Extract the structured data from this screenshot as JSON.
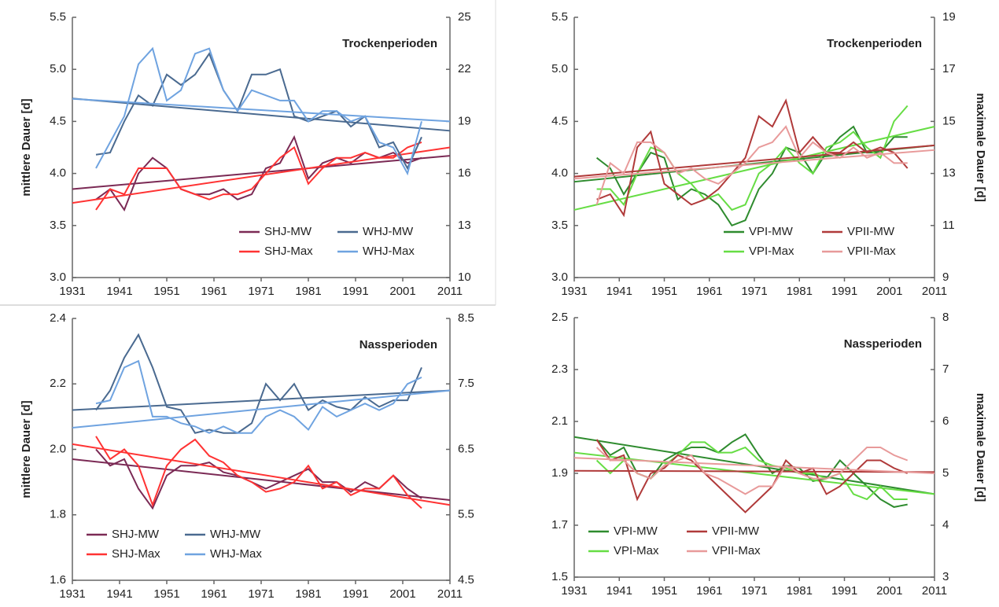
{
  "chart_data": [
    {
      "type": "line",
      "annotation": "Trockenperioden",
      "ylabel": "mittlere Dauer [d]",
      "xlim": [
        1931,
        2011
      ],
      "xticks": [
        1931,
        1941,
        1951,
        1961,
        1971,
        1981,
        1991,
        2001,
        2011
      ],
      "ylim": [
        3.0,
        5.5
      ],
      "yticks": [
        {
          "value": 3.0,
          "label": "3.0"
        },
        3.5,
        {
          "value": 4.0,
          "label": "4.0"
        },
        4.5,
        {
          "value": 5.0,
          "label": "5.0"
        },
        5.5
      ],
      "y2lim": [
        10,
        25
      ],
      "y2ticks": [
        10,
        13,
        16,
        19,
        22,
        25
      ],
      "legend": "lower right",
      "trend_x": [
        1931,
        2011
      ],
      "x": [
        1936,
        1939,
        1942,
        1945,
        1948,
        1951,
        1954,
        1957,
        1960,
        1963,
        1966,
        1969,
        1972,
        1975,
        1978,
        1981,
        1984,
        1987,
        1990,
        1993,
        1996,
        1999,
        2002,
        2005
      ],
      "series": [
        {
          "name": "SHJ-MW",
          "color": "#7b2a55",
          "trend": [
            3.85,
            4.17
          ],
          "values": [
            3.75,
            3.85,
            3.65,
            4.0,
            4.15,
            4.05,
            3.85,
            3.8,
            3.8,
            3.85,
            3.75,
            3.8,
            4.05,
            4.1,
            4.35,
            3.95,
            4.1,
            4.15,
            4.1,
            4.2,
            4.15,
            4.2,
            4.1,
            4.15
          ]
        },
        {
          "name": "SHJ-Max",
          "color": "#ff3333",
          "axis": "y2",
          "trend": [
            14.3,
            17.5
          ],
          "values": [
            13.9,
            15.1,
            14.8,
            16.3,
            16.3,
            16.3,
            15.1,
            14.8,
            14.5,
            14.8,
            14.8,
            15.1,
            16.0,
            16.9,
            17.5,
            15.4,
            16.3,
            16.9,
            16.9,
            17.2,
            16.9,
            16.9,
            17.5,
            17.8
          ]
        },
        {
          "name": "WHJ-MW",
          "color": "#4a6a90",
          "trend": [
            4.72,
            4.41
          ],
          "values": [
            4.18,
            4.2,
            4.5,
            4.75,
            4.65,
            4.95,
            4.85,
            4.95,
            5.15,
            4.8,
            4.6,
            4.95,
            4.95,
            5.0,
            4.55,
            4.5,
            4.55,
            4.6,
            4.45,
            4.55,
            4.25,
            4.3,
            4.05,
            4.35
          ]
        },
        {
          "name": "WHJ-Max",
          "color": "#6fa3e0",
          "axis": "y2",
          "trend": [
            20.3,
            19.0
          ],
          "values": [
            16.3,
            17.8,
            19.3,
            22.3,
            23.2,
            20.2,
            20.8,
            22.9,
            23.2,
            20.8,
            19.6,
            20.8,
            20.5,
            20.2,
            20.2,
            19.0,
            19.6,
            19.6,
            19.0,
            19.3,
            17.8,
            17.5,
            16.0,
            19.0
          ]
        }
      ]
    },
    {
      "type": "line",
      "annotation": "Trockenperioden",
      "y2label": "maximale Dauer [d]",
      "xlim": [
        1931,
        2011
      ],
      "xticks": [
        1931,
        1941,
        1951,
        1961,
        1971,
        1981,
        1991,
        2001,
        2011
      ],
      "ylim": [
        3.0,
        5.5
      ],
      "yticks": [
        {
          "value": 3.0,
          "label": "3.0"
        },
        3.5,
        {
          "value": 4.0,
          "label": "4.0"
        },
        4.5,
        {
          "value": 5.0,
          "label": "5.0"
        },
        5.5
      ],
      "y2lim": [
        9,
        19
      ],
      "y2ticks": [
        9,
        11,
        13,
        15,
        17,
        19
      ],
      "legend": "lower right",
      "trend_x": [
        1931,
        2011
      ],
      "x": [
        1936,
        1939,
        1942,
        1945,
        1948,
        1951,
        1954,
        1957,
        1960,
        1963,
        1966,
        1969,
        1972,
        1975,
        1978,
        1981,
        1984,
        1987,
        1990,
        1993,
        1996,
        1999,
        2002,
        2005
      ],
      "series": [
        {
          "name": "VPI-MW",
          "color": "#2e8b2e",
          "trend": [
            3.92,
            4.27
          ],
          "values": [
            4.15,
            4.05,
            3.8,
            4.0,
            4.2,
            4.15,
            3.75,
            3.85,
            3.8,
            3.7,
            3.5,
            3.55,
            3.85,
            4.0,
            4.25,
            4.2,
            4.0,
            4.2,
            4.35,
            4.45,
            4.2,
            4.2,
            4.35,
            4.35
          ]
        },
        {
          "name": "VPI-Max",
          "color": "#66dd44",
          "axis": "y2",
          "trend": [
            11.6,
            14.8
          ],
          "values": [
            12.4,
            12.4,
            11.8,
            13.0,
            14.0,
            13.8,
            13.0,
            12.6,
            12.0,
            12.2,
            11.6,
            11.8,
            13.0,
            13.4,
            14.0,
            13.4,
            13.0,
            14.0,
            14.2,
            14.6,
            14.0,
            13.6,
            15.0,
            15.6
          ]
        },
        {
          "name": "VPII-MW",
          "color": "#b03a3a",
          "trend": [
            3.97,
            4.27
          ],
          "values": [
            3.75,
            3.8,
            3.6,
            4.25,
            4.4,
            3.9,
            3.8,
            3.7,
            3.75,
            3.85,
            4.0,
            4.15,
            4.55,
            4.45,
            4.7,
            4.2,
            4.35,
            4.2,
            4.2,
            4.3,
            4.2,
            4.25,
            4.2,
            4.05
          ]
        },
        {
          "name": "VPII-Max",
          "color": "#e89a9a",
          "axis": "y2",
          "trend": [
            12.8,
            13.9
          ],
          "values": [
            11.8,
            13.4,
            13.0,
            14.2,
            14.2,
            13.8,
            13.0,
            13.2,
            12.8,
            12.6,
            13.0,
            13.4,
            14.0,
            14.2,
            14.8,
            13.6,
            14.2,
            13.8,
            13.6,
            14.0,
            13.6,
            13.8,
            13.4,
            13.4
          ]
        }
      ]
    },
    {
      "type": "line",
      "annotation": "Nassperioden",
      "ylabel": "mittlere Dauer [d]",
      "xlim": [
        1931,
        2011
      ],
      "xticks": [
        1931,
        1941,
        1951,
        1961,
        1971,
        1981,
        1991,
        2001,
        2011
      ],
      "ylim": [
        1.6,
        2.4
      ],
      "yticks": [
        1.6,
        1.8,
        {
          "value": 2.0,
          "label": "2.0"
        },
        2.2,
        2.4
      ],
      "y2lim": [
        4.5,
        8.5
      ],
      "y2ticks": [
        4.5,
        5.5,
        6.5,
        7.5,
        8.5
      ],
      "legend": "lower left",
      "trend_x": [
        1931,
        2011
      ],
      "x": [
        1936,
        1939,
        1942,
        1945,
        1948,
        1951,
        1954,
        1957,
        1960,
        1963,
        1966,
        1969,
        1972,
        1975,
        1978,
        1981,
        1984,
        1987,
        1990,
        1993,
        1996,
        1999,
        2002,
        2005
      ],
      "series": [
        {
          "name": "SHJ-MW",
          "color": "#7b2a55",
          "trend": [
            1.97,
            1.845
          ],
          "values": [
            2.0,
            1.95,
            1.97,
            1.88,
            1.82,
            1.92,
            1.95,
            1.95,
            1.96,
            1.93,
            1.92,
            1.9,
            1.88,
            1.9,
            1.92,
            1.94,
            1.9,
            1.9,
            1.87,
            1.9,
            1.88,
            1.92,
            1.88,
            1.85
          ]
        },
        {
          "name": "SHJ-Max",
          "color": "#ff3333",
          "axis": "y2",
          "trend": [
            6.58,
            5.65
          ],
          "values": [
            6.7,
            6.35,
            6.5,
            6.25,
            5.65,
            6.25,
            6.5,
            6.65,
            6.4,
            6.3,
            6.1,
            6.0,
            5.85,
            5.9,
            6.0,
            6.25,
            5.9,
            6.0,
            5.8,
            5.9,
            5.9,
            6.1,
            5.8,
            5.6
          ]
        },
        {
          "name": "WHJ-MW",
          "color": "#4a6a90",
          "trend": [
            2.12,
            2.18
          ],
          "values": [
            2.12,
            2.18,
            2.28,
            2.35,
            2.25,
            2.13,
            2.12,
            2.05,
            2.06,
            2.05,
            2.05,
            2.08,
            2.2,
            2.15,
            2.2,
            2.12,
            2.15,
            2.13,
            2.12,
            2.16,
            2.13,
            2.15,
            2.15,
            2.25
          ]
        },
        {
          "name": "WHJ-Max",
          "color": "#6fa3e0",
          "axis": "y2",
          "trend": [
            6.83,
            7.4
          ],
          "values": [
            7.2,
            7.25,
            7.75,
            7.85,
            7.0,
            7.0,
            6.9,
            6.85,
            6.75,
            6.85,
            6.75,
            6.75,
            7.0,
            7.1,
            7.0,
            6.8,
            7.15,
            7.0,
            7.1,
            7.2,
            7.1,
            7.2,
            7.5,
            7.6
          ]
        }
      ]
    },
    {
      "type": "line",
      "annotation": "Nassperioden",
      "y2label": "maximale Dauer [d]",
      "xlim": [
        1931,
        2011
      ],
      "xticks": [
        1931,
        1941,
        1951,
        1961,
        1971,
        1981,
        1991,
        2001,
        2011
      ],
      "ylim": [
        1.5,
        2.5
      ],
      "yticks": [
        1.5,
        1.7,
        1.9,
        2.1,
        2.3,
        2.5
      ],
      "y2lim": [
        3,
        8
      ],
      "y2ticks": [
        3,
        4,
        5,
        6,
        7,
        8
      ],
      "legend": "lower left",
      "trend_x": [
        1931,
        2011
      ],
      "x": [
        1936,
        1939,
        1942,
        1945,
        1948,
        1951,
        1954,
        1957,
        1960,
        1963,
        1966,
        1969,
        1972,
        1975,
        1978,
        1981,
        1984,
        1987,
        1990,
        1993,
        1996,
        1999,
        2002,
        2005
      ],
      "series": [
        {
          "name": "VPI-MW",
          "color": "#2e8b2e",
          "trend": [
            2.04,
            1.82
          ],
          "values": [
            2.03,
            1.97,
            2.0,
            1.9,
            1.88,
            1.95,
            1.98,
            2.0,
            2.0,
            1.98,
            2.02,
            2.05,
            1.97,
            1.9,
            1.93,
            1.92,
            1.87,
            1.88,
            1.95,
            1.9,
            1.85,
            1.8,
            1.77,
            1.78
          ]
        },
        {
          "name": "VPI-Max",
          "color": "#66dd44",
          "axis": "y2",
          "trend": [
            5.4,
            4.6
          ],
          "values": [
            5.25,
            5.0,
            5.25,
            5.0,
            4.9,
            5.15,
            5.35,
            5.6,
            5.6,
            5.4,
            5.4,
            5.5,
            5.25,
            5.15,
            5.1,
            5.0,
            5.0,
            4.9,
            5.0,
            4.6,
            4.5,
            4.75,
            4.5,
            4.5
          ]
        },
        {
          "name": "VPII-MW",
          "color": "#b03a3a",
          "trend": [
            1.91,
            1.905
          ],
          "values": [
            2.03,
            1.95,
            1.97,
            1.8,
            1.9,
            1.92,
            1.97,
            1.95,
            1.9,
            1.85,
            1.8,
            1.75,
            1.8,
            1.85,
            1.95,
            1.9,
            1.92,
            1.82,
            1.85,
            1.9,
            1.95,
            1.95,
            1.92,
            1.9
          ]
        },
        {
          "name": "VPII-Max",
          "color": "#e89a9a",
          "axis": "y2",
          "trend": [
            5.3,
            5.0
          ],
          "values": [
            5.5,
            5.25,
            5.25,
            5.0,
            4.9,
            5.15,
            5.25,
            5.35,
            5.0,
            4.9,
            4.75,
            4.6,
            4.75,
            4.75,
            5.15,
            5.0,
            4.9,
            4.9,
            5.0,
            5.25,
            5.5,
            5.5,
            5.35,
            5.25
          ]
        }
      ]
    }
  ]
}
